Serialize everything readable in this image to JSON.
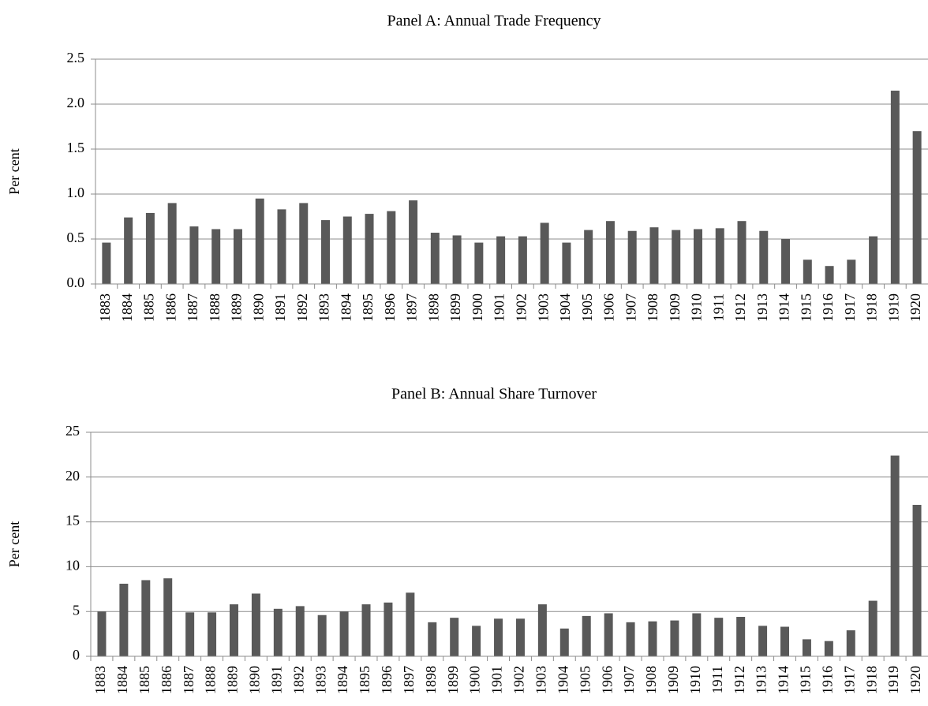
{
  "chart_data": [
    {
      "type": "bar",
      "title": "Panel A: Annual Trade Frequency",
      "y_label": "Per cent",
      "categories": [
        "1883",
        "1884",
        "1885",
        "1886",
        "1887",
        "1888",
        "1889",
        "1890",
        "1891",
        "1892",
        "1893",
        "1894",
        "1895",
        "1896",
        "1897",
        "1898",
        "1899",
        "1900",
        "1901",
        "1902",
        "1903",
        "1904",
        "1905",
        "1906",
        "1907",
        "1908",
        "1909",
        "1910",
        "1911",
        "1912",
        "1913",
        "1914",
        "1915",
        "1916",
        "1917",
        "1918",
        "1919",
        "1920"
      ],
      "values": [
        0.46,
        0.74,
        0.79,
        0.9,
        0.64,
        0.61,
        0.61,
        0.95,
        0.83,
        0.9,
        0.71,
        0.75,
        0.78,
        0.81,
        0.93,
        0.57,
        0.54,
        0.46,
        0.53,
        0.53,
        0.68,
        0.46,
        0.6,
        0.7,
        0.59,
        0.63,
        0.6,
        0.61,
        0.62,
        0.7,
        0.59,
        0.5,
        0.27,
        0.2,
        0.27,
        0.53,
        2.15,
        1.7
      ],
      "color": "#595959",
      "ylim": [
        0,
        2.5
      ],
      "yticks": [
        {
          "value": 0,
          "label": "0.0"
        },
        0.5,
        {
          "value": 1,
          "label": "1.0"
        },
        1.5,
        {
          "value": 2,
          "label": "2.0"
        },
        2.5
      ],
      "grid": true
    },
    {
      "type": "bar",
      "title": "Panel B: Annual Share Turnover",
      "y_label": "Per cent",
      "categories": [
        "1883",
        "1884",
        "1885",
        "1886",
        "1887",
        "1888",
        "1889",
        "1890",
        "1891",
        "1892",
        "1893",
        "1894",
        "1895",
        "1896",
        "1897",
        "1898",
        "1899",
        "1900",
        "1901",
        "1902",
        "1903",
        "1904",
        "1905",
        "1906",
        "1907",
        "1908",
        "1909",
        "1910",
        "1911",
        "1912",
        "1913",
        "1914",
        "1915",
        "1916",
        "1917",
        "1918",
        "1919",
        "1920"
      ],
      "values": [
        5.0,
        8.1,
        8.5,
        8.7,
        4.9,
        4.9,
        5.8,
        7.0,
        5.3,
        5.6,
        4.6,
        5.0,
        5.8,
        6.0,
        7.1,
        3.8,
        4.3,
        3.4,
        4.2,
        4.2,
        5.8,
        3.1,
        4.5,
        4.8,
        3.8,
        3.9,
        4.0,
        4.8,
        4.3,
        4.4,
        3.4,
        3.3,
        1.9,
        1.7,
        2.9,
        6.2,
        22.4,
        16.9
      ],
      "color": "#595959",
      "ylim": [
        0,
        25
      ],
      "yticks": [
        0,
        5,
        10,
        15,
        20,
        25
      ],
      "grid": true
    }
  ]
}
